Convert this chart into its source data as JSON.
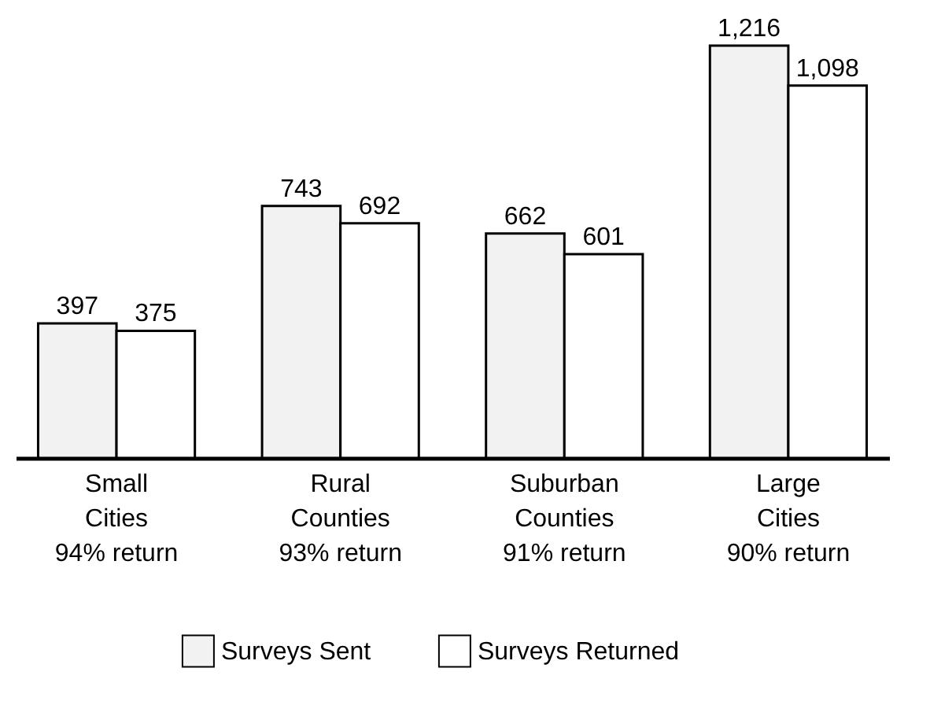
{
  "chart_data": {
    "type": "bar",
    "categories": [
      "Small\nCities\n94% return",
      "Rural\nCounties\n93% return",
      "Suburban\nCounties\n91% return",
      "Large\nCities\n90% return"
    ],
    "series": [
      {
        "name": "Surveys Sent",
        "color": "#f2f2f2",
        "values": [
          397,
          743,
          662,
          1216
        ],
        "value_labels": [
          "397",
          "743",
          "662",
          "1,216"
        ]
      },
      {
        "name": "Surveys Returned",
        "color": "#ffffff",
        "values": [
          375,
          692,
          601,
          1098
        ],
        "value_labels": [
          "375",
          "692",
          "601",
          "1,098"
        ]
      }
    ],
    "legend": "bottom"
  }
}
